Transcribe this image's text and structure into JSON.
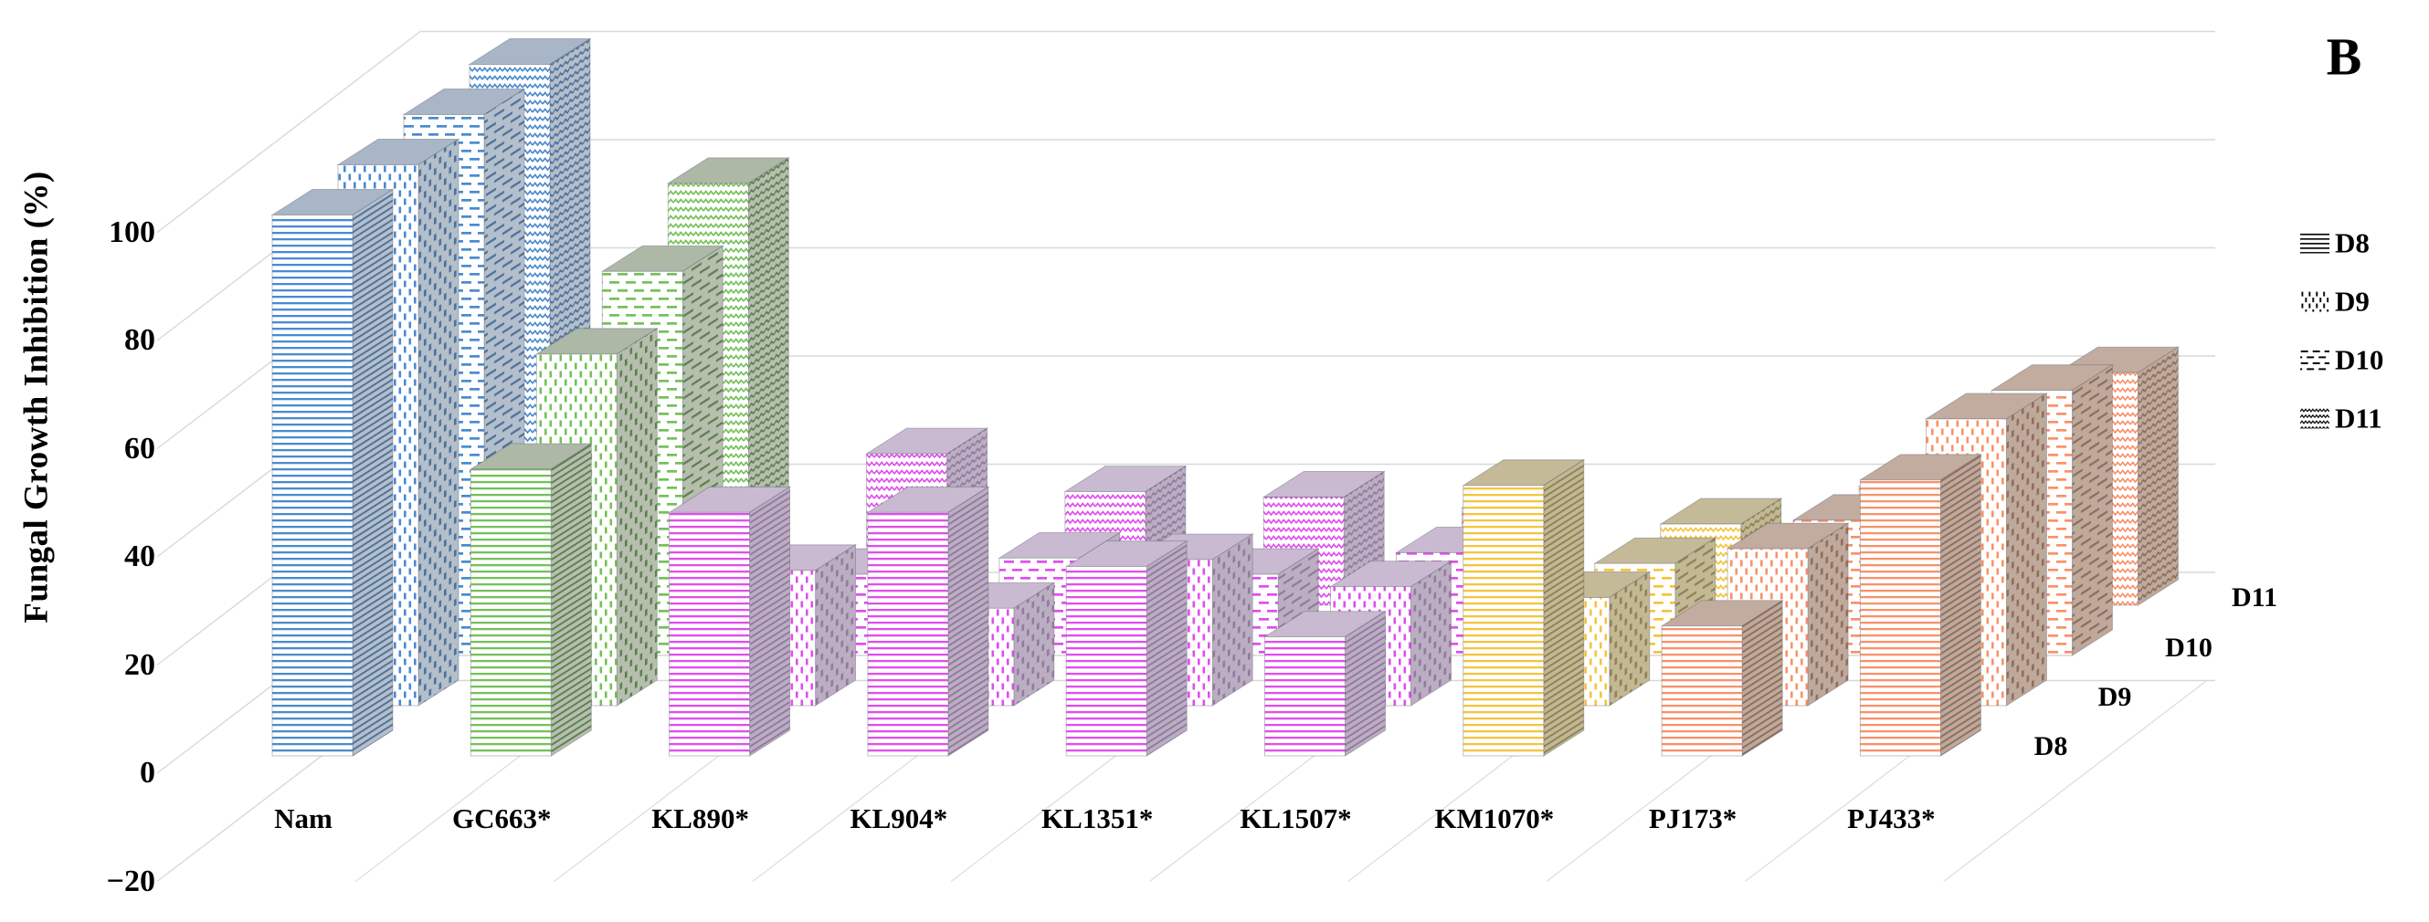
{
  "figure_label": "B",
  "y_axis": {
    "title": "Fungal Growth Inhibition (%)",
    "ticks": [
      -20,
      0,
      20,
      40,
      60,
      80,
      100
    ],
    "min": -20,
    "max": 100
  },
  "depth_axis": {
    "labels": [
      "D8",
      "D9",
      "D10",
      "D11"
    ]
  },
  "legend": {
    "position": "right",
    "entries": [
      {
        "label": "D8",
        "pattern": "horizontal-lines"
      },
      {
        "label": "D9",
        "pattern": "dots"
      },
      {
        "label": "D10",
        "pattern": "dashes"
      },
      {
        "label": "D11",
        "pattern": "zigzag"
      }
    ]
  },
  "colors": {
    "grid": "#d8d8d8",
    "text": "#000000",
    "face_edge": "rgba(100,105,115,0.45)",
    "palette": {
      "blue": {
        "line": "#4a8ad0",
        "top": "#a9b6c7",
        "side_bg": "#b3bfca",
        "side_line": "#50719b"
      },
      "green": {
        "line": "#74c158",
        "top": "#adb8a6",
        "side_bg": "#b6bfae",
        "side_line": "#5f7f52"
      },
      "magenta": {
        "line": "#e14df0",
        "top": "#c9bad1",
        "side_bg": "#bcaec2",
        "side_line": "#93799f"
      },
      "yellow": {
        "line": "#f5c43e",
        "top": "#c5ba97",
        "side_bg": "#c2b893",
        "side_line": "#8f8257"
      },
      "orange": {
        "line": "#fa9168",
        "top": "#c2ac9f",
        "side_bg": "#bfa99b",
        "side_line": "#8d6f5f"
      }
    }
  },
  "chart_data": {
    "type": "bar",
    "projection": "3d",
    "title": "B",
    "ylabel": "Fungal Growth Inhibition (%)",
    "ylim": [
      -20,
      100
    ],
    "grid": true,
    "legend_position": "right",
    "categories": [
      "Nam",
      "GC663*",
      "KL890*",
      "KL904*",
      "KL1351*",
      "KL1507*",
      "KM1070*",
      "PJ173*",
      "PJ433*"
    ],
    "category_color_keys": [
      "blue",
      "green",
      "magenta",
      "magenta",
      "magenta",
      "magenta",
      "yellow",
      "orange",
      "orange"
    ],
    "series": [
      {
        "name": "D8",
        "pattern": "horizontal-lines",
        "values": [
          100,
          53,
          45,
          45,
          35,
          22,
          50,
          24,
          51
        ]
      },
      {
        "name": "D9",
        "pattern": "dots",
        "values": [
          100,
          65,
          25,
          18,
          27,
          22,
          20,
          29,
          53
        ]
      },
      {
        "name": "D10",
        "pattern": "dashes",
        "values": [
          100,
          71,
          15,
          18,
          15,
          19,
          17,
          25,
          49
        ]
      },
      {
        "name": "D11",
        "pattern": "zigzag",
        "values": [
          100,
          78,
          28,
          21,
          20,
          18,
          15,
          22,
          43
        ]
      }
    ]
  }
}
